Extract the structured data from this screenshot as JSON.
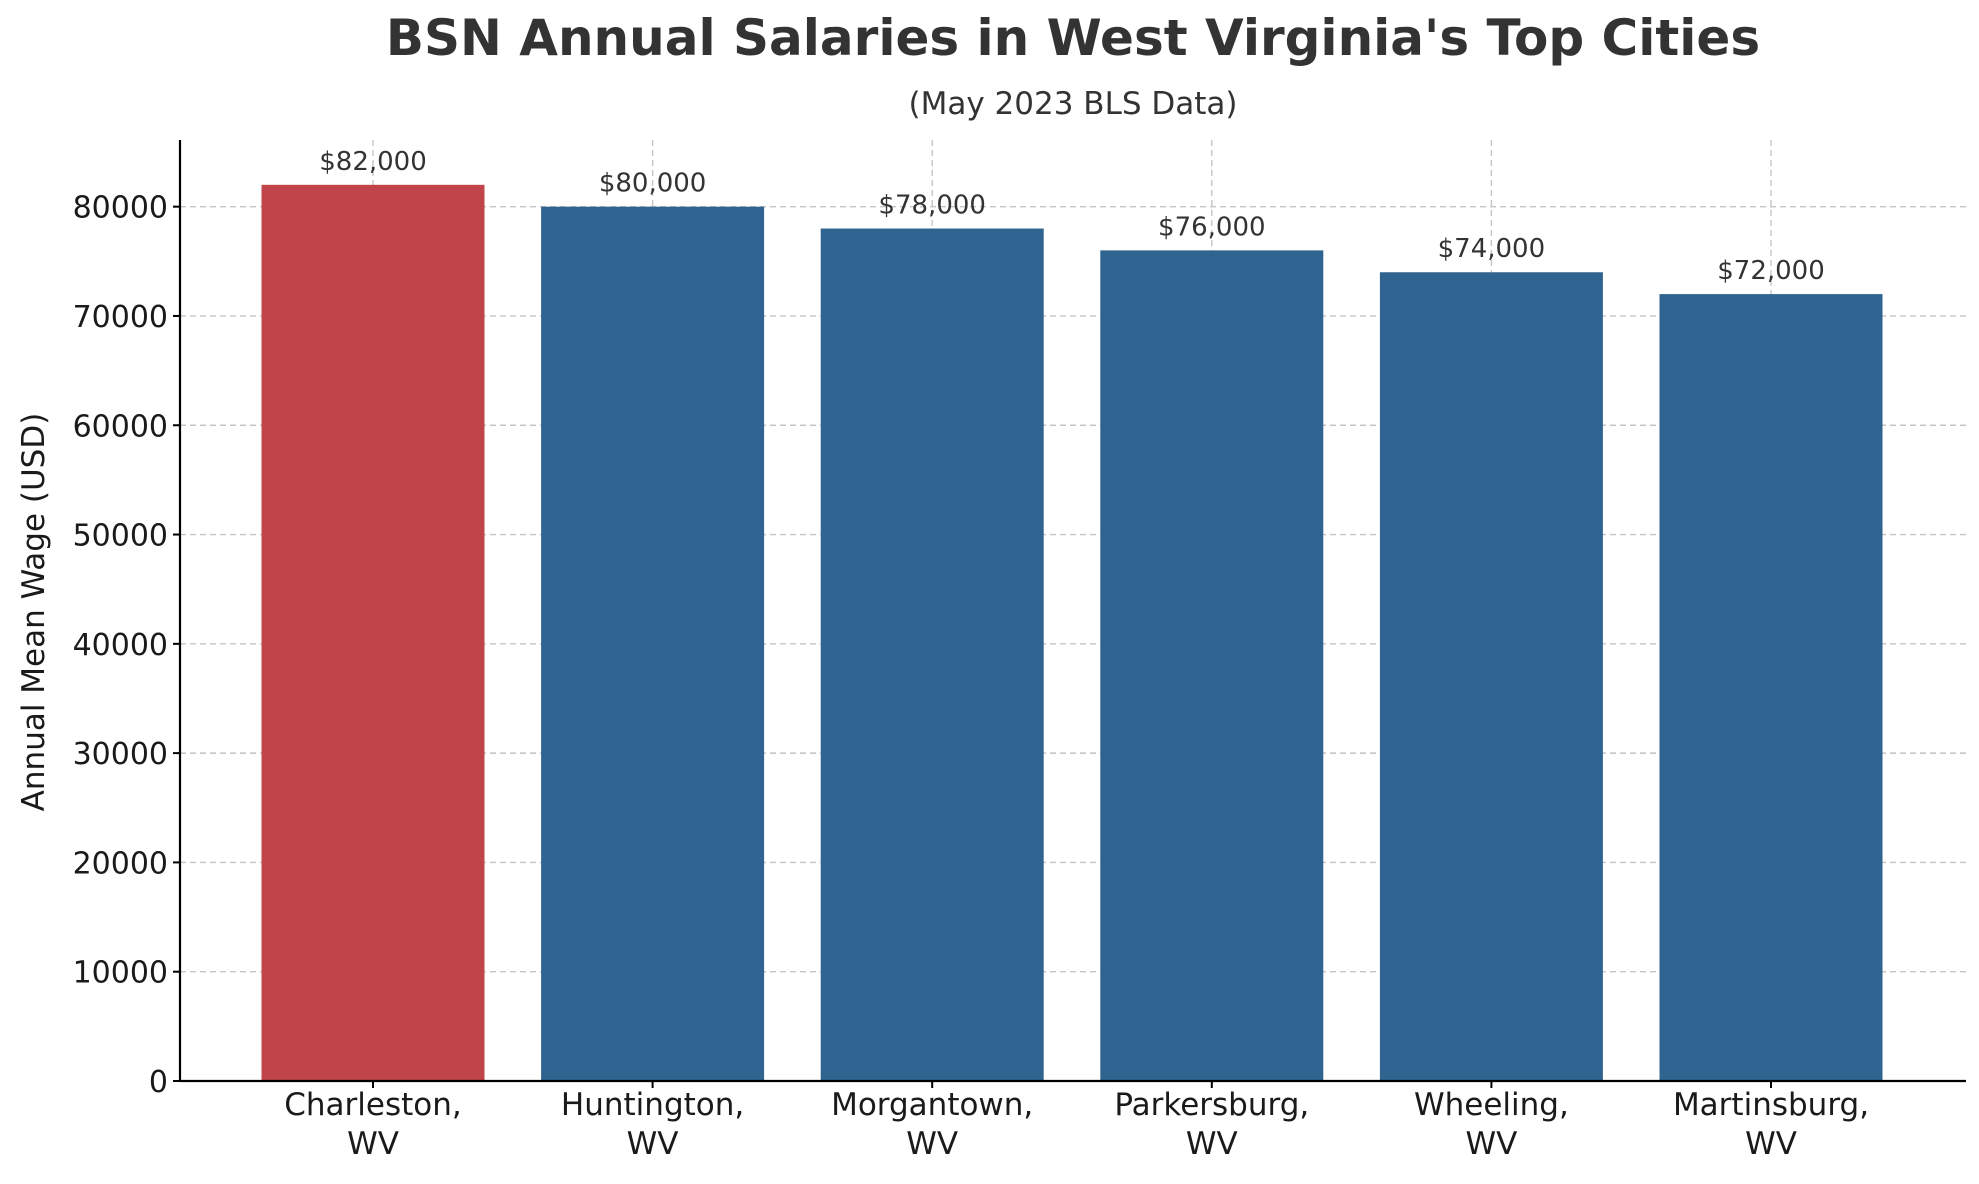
{
  "chart_data": {
    "type": "bar",
    "title": "BSN Annual Salaries in West Virginia's Top Cities",
    "subtitle": "(May 2023 BLS Data)",
    "xlabel": "",
    "ylabel": "Annual Mean Wage (USD)",
    "categories": [
      [
        "Charleston,",
        "WV"
      ],
      [
        "Huntington,",
        "WV"
      ],
      [
        "Morgantown,",
        "WV"
      ],
      [
        "Parkersburg,",
        "WV"
      ],
      [
        "Wheeling,",
        "WV"
      ],
      [
        "Martinsburg,",
        "WV"
      ]
    ],
    "values": [
      82000,
      80000,
      78000,
      76000,
      74000,
      72000
    ],
    "value_labels": [
      "$82,000",
      "$80,000",
      "$78,000",
      "$76,000",
      "$74,000",
      "$72,000"
    ],
    "bar_colors": [
      "#c0454a",
      "#2f6491",
      "#2f6491",
      "#2f6491",
      "#2f6491",
      "#2f6491"
    ],
    "ylim": [
      0,
      86100
    ],
    "yticks": [
      0,
      10000,
      20000,
      30000,
      40000,
      50000,
      60000,
      70000,
      80000
    ],
    "ytick_labels": [
      "0",
      "10000",
      "20000",
      "30000",
      "40000",
      "50000",
      "60000",
      "70000",
      "80000"
    ],
    "grid": true,
    "legend": "none"
  }
}
